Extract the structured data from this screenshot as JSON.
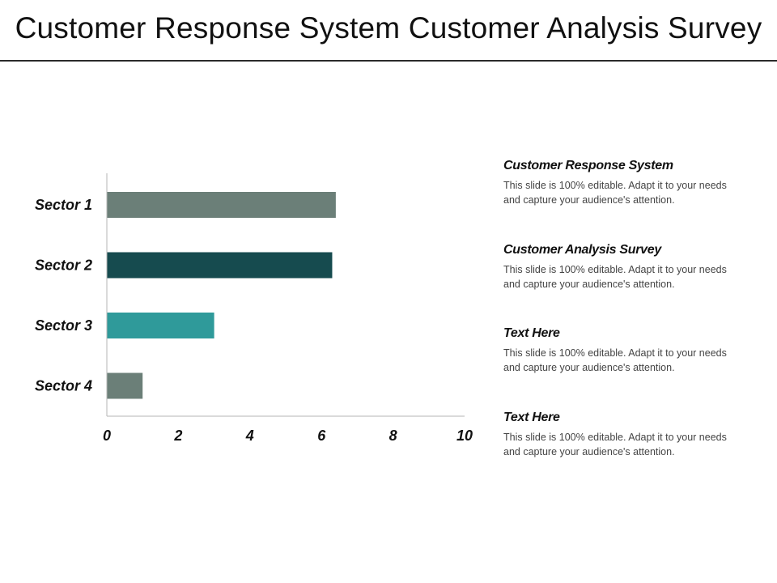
{
  "slide": {
    "title": "Customer Response System Customer Analysis Survey"
  },
  "chart_data": {
    "type": "bar",
    "orientation": "horizontal",
    "categories": [
      "Sector 1",
      "Sector 2",
      "Sector 3",
      "Sector 4"
    ],
    "values": [
      6.4,
      6.3,
      3.0,
      1.0
    ],
    "bar_colors": [
      "#6b7f78",
      "#164b4f",
      "#2f9a9a",
      "#6b7f78"
    ],
    "xlim": [
      0,
      10
    ],
    "x_ticks": [
      "0",
      "2",
      "4",
      "6",
      "8",
      "10"
    ],
    "title": "",
    "xlabel": "",
    "ylabel": "",
    "grid": false,
    "legend": "none"
  },
  "notes": [
    {
      "heading": "Customer Response System",
      "body": "This slide is 100% editable. Adapt it to your needs and capture your audience's attention."
    },
    {
      "heading": "Customer Analysis Survey",
      "body": "This slide is 100% editable. Adapt it to your needs and capture your audience's attention."
    },
    {
      "heading": "Text Here",
      "body": "This slide is 100% editable. Adapt it to your needs and capture your audience's attention."
    },
    {
      "heading": "Text Here",
      "body": "This slide is 100% editable. Adapt it to your needs and capture your audience's attention."
    }
  ],
  "colors": {
    "axis": "#b5b5b5",
    "title_rule": "#2a2a2a"
  }
}
